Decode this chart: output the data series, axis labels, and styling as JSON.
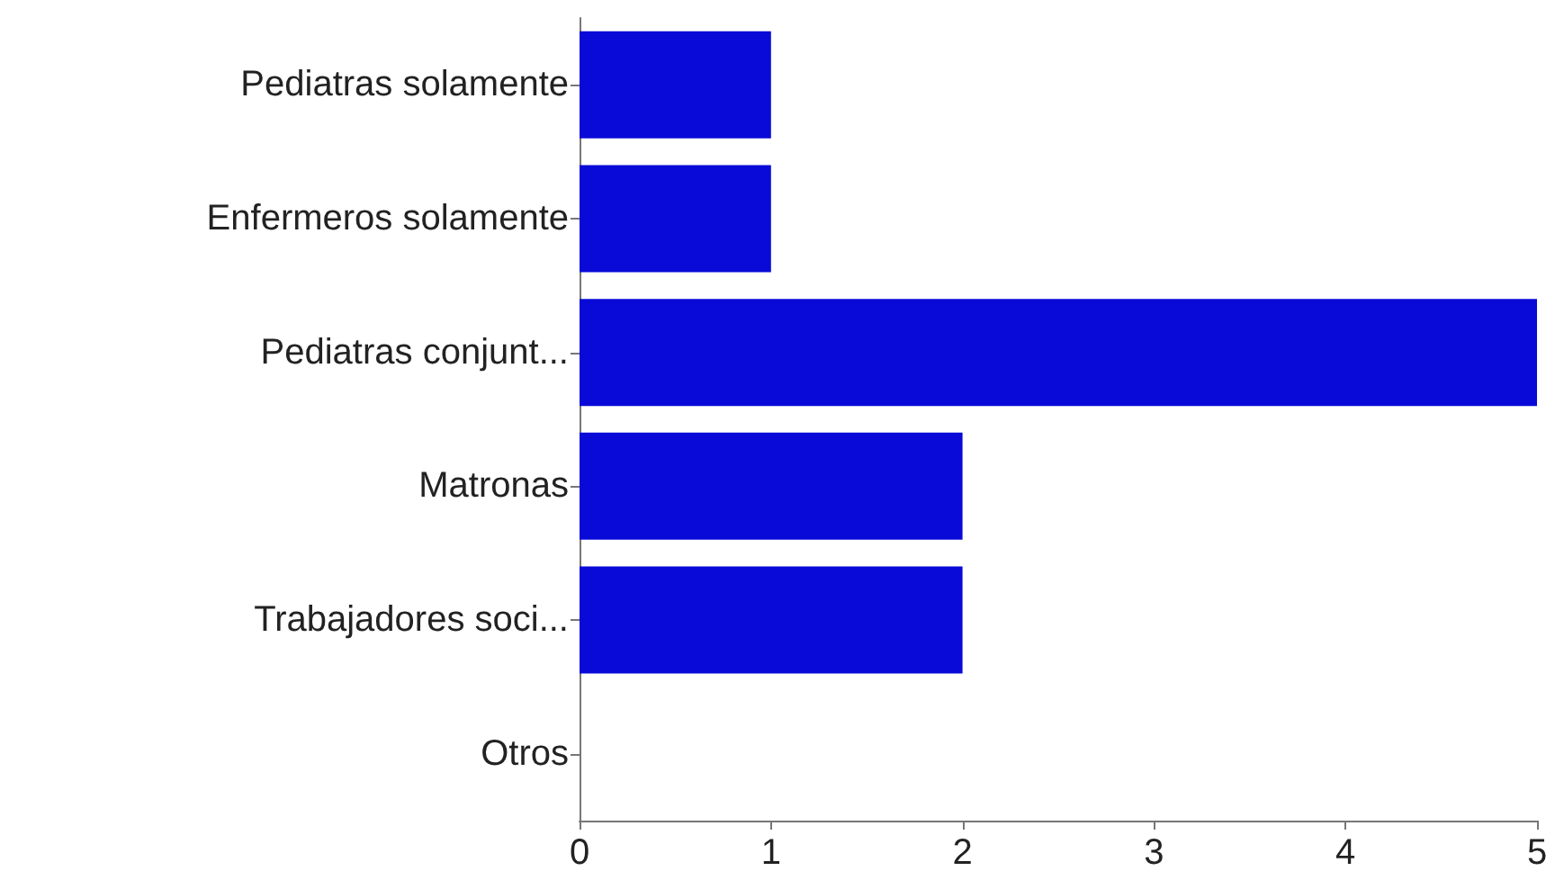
{
  "chart_data": {
    "type": "bar",
    "orientation": "horizontal",
    "categories": [
      "Pediatras solamente",
      "Enfermeros solamente",
      "Pediatras conjunt...",
      "Matronas",
      "Trabajadores soci...",
      "Otros"
    ],
    "values": [
      1,
      1,
      5,
      2,
      2,
      0
    ],
    "color": "#0a0ad8",
    "xlim": [
      0,
      5
    ],
    "xticks": [
      0,
      1,
      2,
      3,
      4,
      5
    ]
  }
}
